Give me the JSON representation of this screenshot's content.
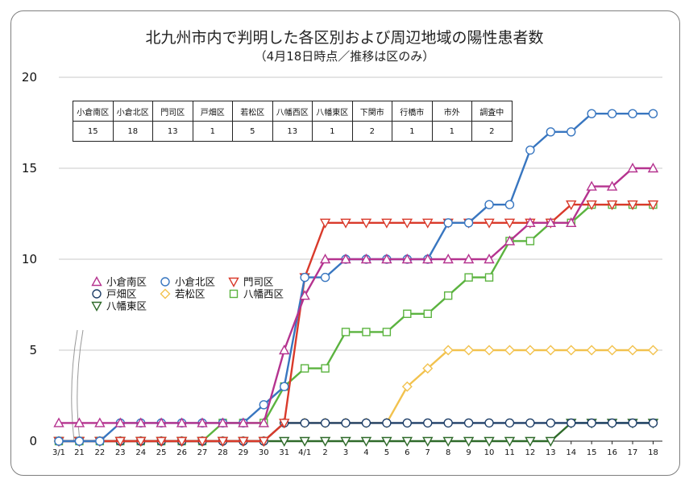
{
  "chart_data": {
    "type": "line",
    "title": "北九州市内で判明した各区別および周辺地域の陽性患者数",
    "subtitle": "（4月18日時点／推移は区のみ）",
    "x": [
      "3/1",
      "21",
      "22",
      "23",
      "24",
      "25",
      "26",
      "27",
      "28",
      "29",
      "30",
      "31",
      "4/1",
      "2",
      "3",
      "4",
      "5",
      "6",
      "7",
      "8",
      "9",
      "10",
      "11",
      "12",
      "13",
      "14",
      "15",
      "16",
      "17",
      "18"
    ],
    "yticks": [
      0,
      5,
      10,
      15,
      20
    ],
    "ylim": [
      0,
      20
    ],
    "grid": true,
    "series": [
      {
        "name": "小倉南区",
        "color": "#b5338f",
        "marker": "triangle-up",
        "values": [
          1,
          1,
          1,
          1,
          1,
          1,
          1,
          1,
          1,
          1,
          1,
          5,
          8,
          10,
          10,
          10,
          10,
          10,
          10,
          10,
          10,
          10,
          11,
          12,
          12,
          12,
          14,
          14,
          15,
          15
        ]
      },
      {
        "name": "小倉北区",
        "color": "#3876c0",
        "marker": "circle",
        "values": [
          0,
          0,
          0,
          1,
          1,
          1,
          1,
          1,
          1,
          1,
          2,
          3,
          9,
          9,
          10,
          10,
          10,
          10,
          10,
          12,
          12,
          13,
          13,
          16,
          17,
          17,
          18,
          18,
          18,
          18
        ]
      },
      {
        "name": "門司区",
        "color": "#d93a2b",
        "marker": "triangle-down",
        "values": [
          0,
          0,
          0,
          0,
          0,
          0,
          0,
          0,
          0,
          0,
          0,
          1,
          9,
          12,
          12,
          12,
          12,
          12,
          12,
          12,
          12,
          12,
          12,
          12,
          12,
          13,
          13,
          13,
          13,
          13
        ]
      },
      {
        "name": "戸畑区",
        "color": "#1f3f68",
        "marker": "circle",
        "values": [
          0,
          0,
          0,
          0,
          0,
          0,
          0,
          0,
          0,
          0,
          0,
          1,
          1,
          1,
          1,
          1,
          1,
          1,
          1,
          1,
          1,
          1,
          1,
          1,
          1,
          1,
          1,
          1,
          1,
          1
        ]
      },
      {
        "name": "若松区",
        "color": "#f2c24e",
        "marker": "diamond",
        "values": [
          0,
          0,
          0,
          0,
          0,
          0,
          0,
          0,
          0,
          0,
          0,
          1,
          1,
          1,
          1,
          1,
          1,
          3,
          4,
          5,
          5,
          5,
          5,
          5,
          5,
          5,
          5,
          5,
          5,
          5
        ]
      },
      {
        "name": "八幡西区",
        "color": "#5bb33f",
        "marker": "square",
        "values": [
          0,
          0,
          0,
          0,
          0,
          0,
          0,
          0,
          1,
          1,
          1,
          3,
          4,
          4,
          6,
          6,
          6,
          7,
          7,
          8,
          9,
          9,
          11,
          11,
          12,
          12,
          13,
          13,
          13,
          13
        ]
      },
      {
        "name": "八幡東区",
        "color": "#2f6a2a",
        "marker": "triangle-down",
        "values": [
          0,
          0,
          0,
          0,
          0,
          0,
          0,
          0,
          0,
          0,
          0,
          0,
          0,
          0,
          0,
          0,
          0,
          0,
          0,
          0,
          0,
          0,
          0,
          0,
          0,
          1,
          1,
          1,
          1,
          1
        ]
      }
    ],
    "table": {
      "headers": [
        "小倉南区",
        "小倉北区",
        "門司区",
        "戸畑区",
        "若松区",
        "八幡西区",
        "八幡東区",
        "下関市",
        "行橋市",
        "市外",
        "調査中"
      ],
      "values": [
        "15",
        "18",
        "13",
        "1",
        "5",
        "13",
        "1",
        "2",
        "1",
        "1",
        "2"
      ]
    }
  }
}
